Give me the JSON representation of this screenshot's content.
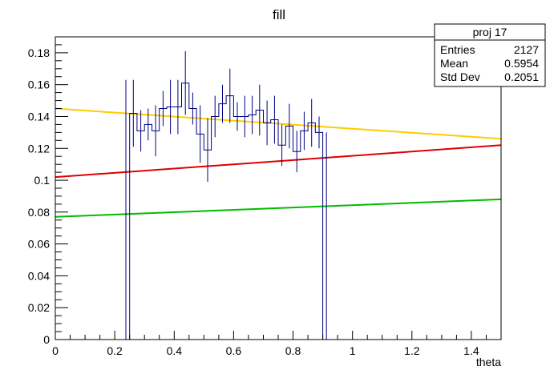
{
  "chart_data": {
    "type": "histogram",
    "title": "fill",
    "xlabel": "theta",
    "ylabel": "",
    "xlim": [
      0,
      1.5
    ],
    "ylim": [
      0,
      0.19
    ],
    "x_ticks": [
      "0",
      "0.2",
      "0.4",
      "0.6",
      "0.8",
      "1",
      "1.2",
      "1.4"
    ],
    "y_ticks": [
      "0",
      "0.02",
      "0.04",
      "0.06",
      "0.08",
      "0.1",
      "0.12",
      "0.14",
      "0.16",
      "0.18"
    ],
    "bin_width": 0.025,
    "histogram": {
      "color": "#000080",
      "bins": [
        {
          "x0": 0.225,
          "value": 0.0,
          "error": 0.0
        },
        {
          "x0": 0.25,
          "value": 0.142,
          "error": 0.021
        },
        {
          "x0": 0.275,
          "value": 0.131,
          "error": 0.013
        },
        {
          "x0": 0.3,
          "value": 0.135,
          "error": 0.01
        },
        {
          "x0": 0.325,
          "value": 0.131,
          "error": 0.016
        },
        {
          "x0": 0.35,
          "value": 0.145,
          "error": 0.011
        },
        {
          "x0": 0.375,
          "value": 0.146,
          "error": 0.017
        },
        {
          "x0": 0.4,
          "value": 0.146,
          "error": 0.017
        },
        {
          "x0": 0.425,
          "value": 0.161,
          "error": 0.02
        },
        {
          "x0": 0.45,
          "value": 0.145,
          "error": 0.01
        },
        {
          "x0": 0.475,
          "value": 0.129,
          "error": 0.018
        },
        {
          "x0": 0.5,
          "value": 0.119,
          "error": 0.02
        },
        {
          "x0": 0.525,
          "value": 0.14,
          "error": 0.013
        },
        {
          "x0": 0.55,
          "value": 0.148,
          "error": 0.012
        },
        {
          "x0": 0.575,
          "value": 0.153,
          "error": 0.017
        },
        {
          "x0": 0.6,
          "value": 0.14,
          "error": 0.009
        },
        {
          "x0": 0.625,
          "value": 0.14,
          "error": 0.013
        },
        {
          "x0": 0.65,
          "value": 0.141,
          "error": 0.012
        },
        {
          "x0": 0.675,
          "value": 0.144,
          "error": 0.016
        },
        {
          "x0": 0.7,
          "value": 0.136,
          "error": 0.014
        },
        {
          "x0": 0.725,
          "value": 0.138,
          "error": 0.015
        },
        {
          "x0": 0.75,
          "value": 0.122,
          "error": 0.013
        },
        {
          "x0": 0.775,
          "value": 0.134,
          "error": 0.014
        },
        {
          "x0": 0.8,
          "value": 0.118,
          "error": 0.013
        },
        {
          "x0": 0.825,
          "value": 0.131,
          "error": 0.012
        },
        {
          "x0": 0.85,
          "value": 0.136,
          "error": 0.015
        },
        {
          "x0": 0.875,
          "value": 0.13,
          "error": 0.01
        },
        {
          "x0": 0.9,
          "value": 0.0,
          "error": 0.0
        }
      ]
    },
    "lines": [
      {
        "color": "#ffcc00",
        "x": [
          0,
          1.5
        ],
        "y": [
          0.145,
          0.126
        ]
      },
      {
        "color": "#dd0000",
        "x": [
          0,
          1.5
        ],
        "y": [
          0.102,
          0.122
        ]
      },
      {
        "color": "#00bb00",
        "x": [
          0,
          1.5
        ],
        "y": [
          0.077,
          0.088
        ]
      }
    ],
    "stats_box": {
      "title": "proj 17",
      "rows": [
        {
          "label": "Entries",
          "value": "2127"
        },
        {
          "label": "Mean",
          "value": "0.5954"
        },
        {
          "label": "Std Dev",
          "value": "0.2051"
        }
      ]
    }
  }
}
